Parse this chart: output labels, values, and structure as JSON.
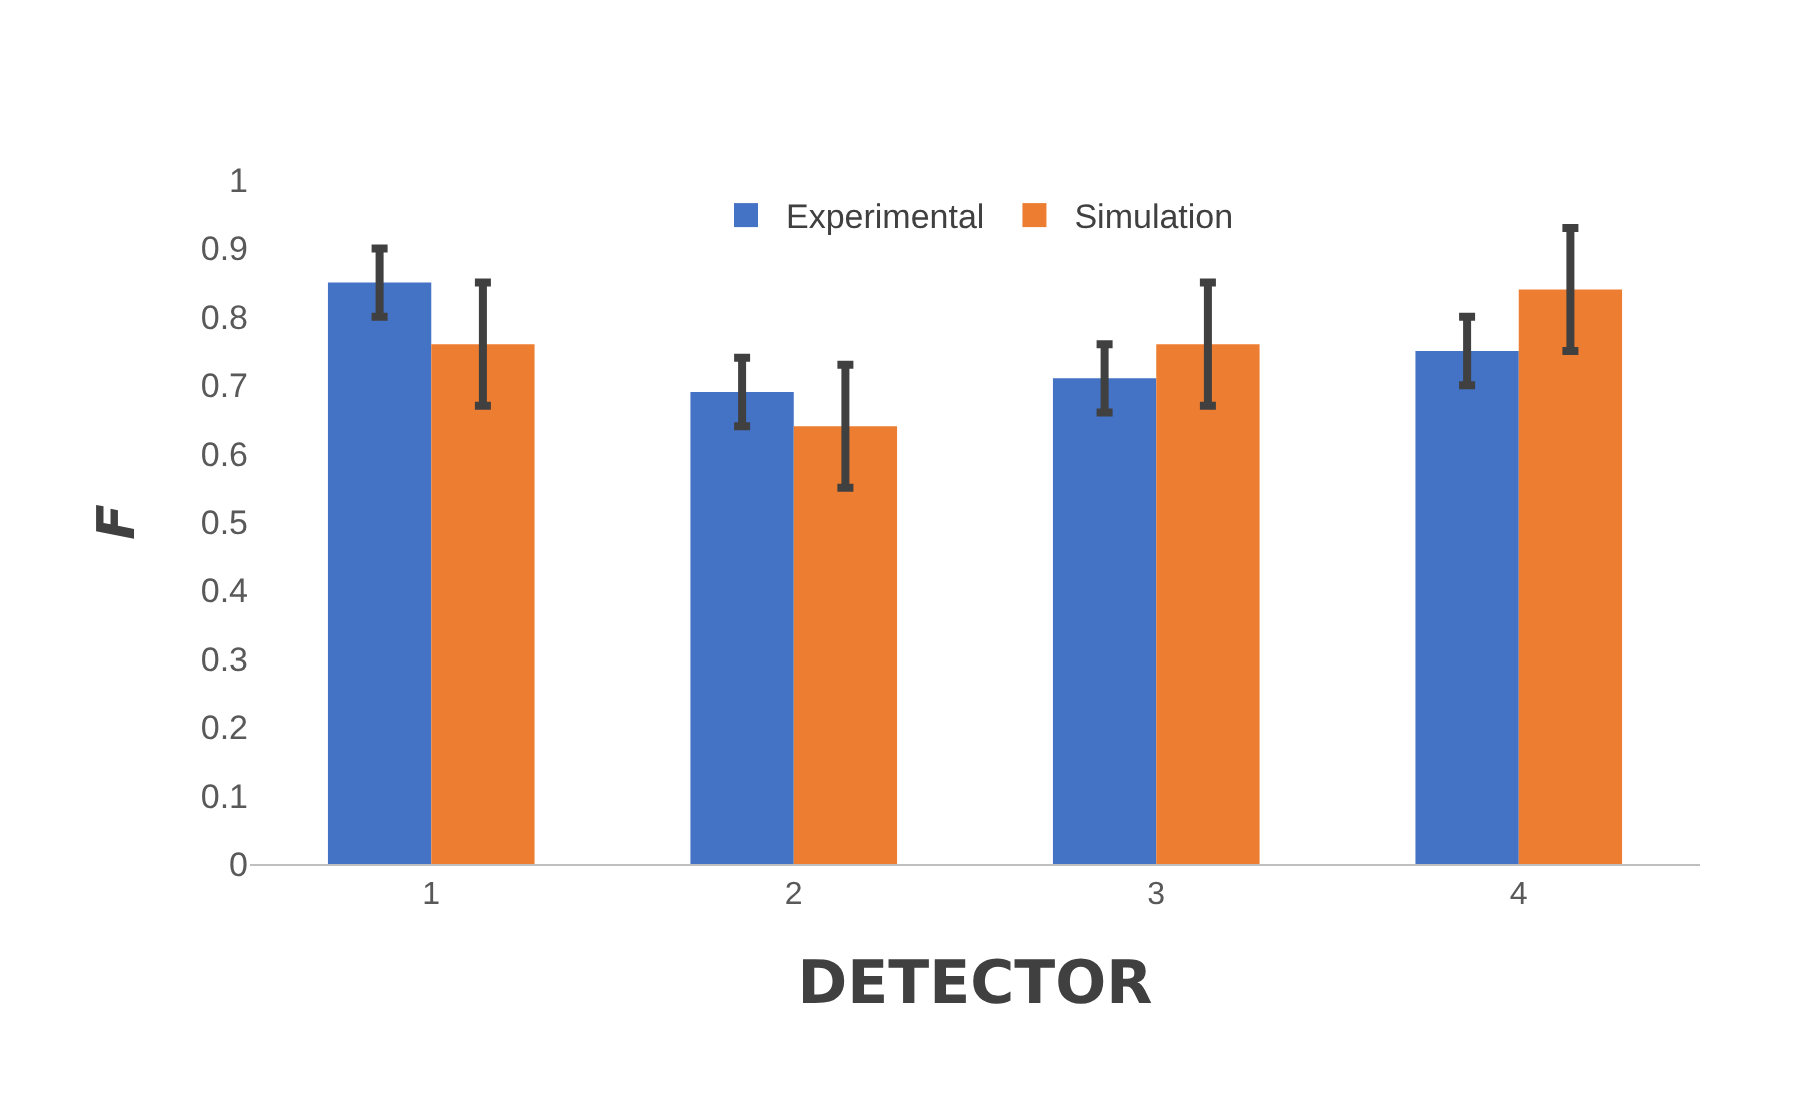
{
  "chart_data": {
    "type": "bar",
    "xlabel": "DETECTOR",
    "ylabel": "F",
    "categories": [
      "1",
      "2",
      "3",
      "4"
    ],
    "series": [
      {
        "name": "Experimental",
        "color": "#4472c4",
        "values": [
          0.85,
          0.69,
          0.71,
          0.75
        ],
        "errors": [
          0.05,
          0.05,
          0.05,
          0.05
        ]
      },
      {
        "name": "Simulation",
        "color": "#ed7d31",
        "values": [
          0.76,
          0.64,
          0.76,
          0.84
        ],
        "errors": [
          0.09,
          0.09,
          0.09,
          0.09
        ]
      }
    ],
    "ylim": [
      0,
      1
    ],
    "yticks": [
      0,
      0.1,
      0.2,
      0.3,
      0.4,
      0.5,
      0.6,
      0.7,
      0.8,
      0.9,
      1
    ],
    "grid": false,
    "legend": "top"
  }
}
